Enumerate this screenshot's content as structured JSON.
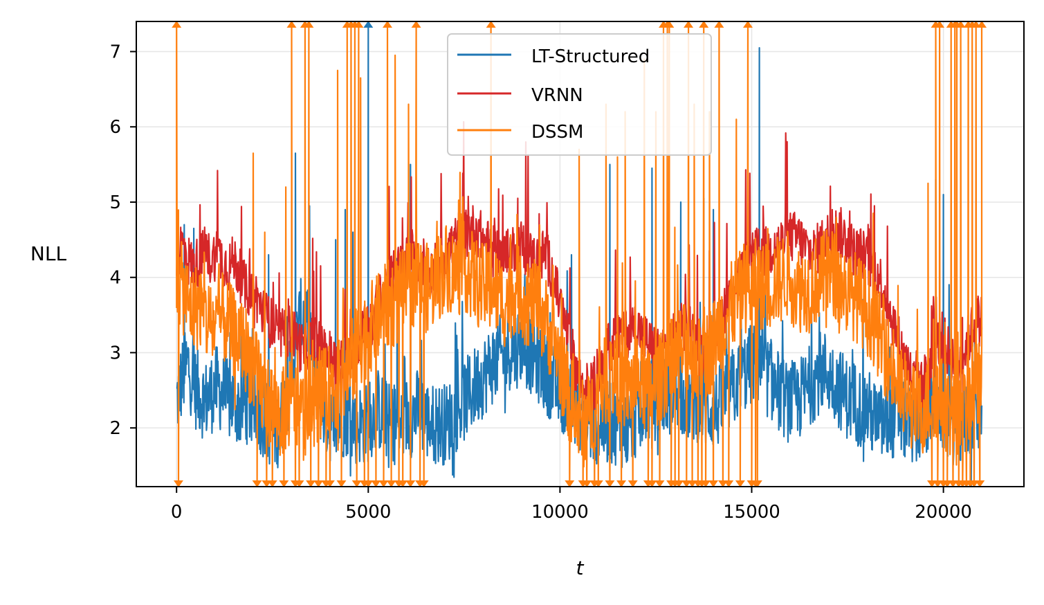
{
  "chart_data": {
    "type": "line",
    "title": "",
    "xlabel": "t",
    "ylabel": "NLL",
    "xlim": [
      -1050,
      22100
    ],
    "ylim": [
      1.22,
      7.4
    ],
    "xticks": [
      0,
      5000,
      10000,
      15000,
      20000
    ],
    "xtick_labels": [
      "0",
      "5000",
      "10000",
      "15000",
      "20000"
    ],
    "yticks": [
      2,
      3,
      4,
      5,
      6,
      7
    ],
    "ytick_labels": [
      "2",
      "3",
      "4",
      "5",
      "6",
      "7"
    ],
    "grid": true,
    "legend_position": "top-center",
    "x_start": 0,
    "x_end": 21000,
    "sample_step": 150,
    "series": [
      {
        "name": "LT-Structured",
        "color": "#1f77b4",
        "baseline": [
          2.3,
          2.6,
          2.8,
          2.5,
          2.4,
          2.3,
          2.4,
          2.5,
          2.4,
          2.3,
          2.3,
          2.2,
          2.3,
          2.2,
          2.2,
          2.1,
          2.0,
          1.9,
          2.0,
          2.3,
          2.7,
          3.2,
          3.5,
          3.3,
          2.8,
          2.3,
          2.1,
          2.0,
          2.0,
          2.1,
          2.1,
          2.0,
          2.0,
          2.0,
          2.1,
          2.2,
          2.1,
          2.0,
          2.0,
          2.0,
          2.1,
          2.1,
          2.2,
          2.1,
          2.0,
          2.0,
          2.0,
          2.0,
          2.1,
          2.2,
          2.3,
          2.4,
          2.5,
          2.6,
          2.7,
          2.8,
          2.9,
          2.9,
          3.0,
          3.0,
          3.1,
          3.0,
          2.9,
          2.8,
          2.7,
          2.6,
          2.5,
          2.4,
          2.4,
          2.3,
          2.2,
          2.1,
          2.0,
          2.0,
          2.0,
          2.0,
          2.0,
          2.0,
          1.9,
          2.0,
          2.1,
          2.2,
          2.3,
          2.3,
          2.4,
          2.4,
          2.4,
          2.5,
          2.4,
          2.3,
          2.3,
          2.3,
          2.2,
          2.2,
          2.2,
          2.3,
          2.4,
          2.5,
          2.6,
          2.7,
          2.8,
          2.8,
          2.7,
          2.6,
          2.5,
          2.4,
          2.3,
          2.3,
          2.3,
          2.4,
          2.5,
          2.6,
          2.7,
          2.7,
          2.6,
          2.5,
          2.4,
          2.3,
          2.3,
          2.2,
          2.2,
          2.1,
          2.0,
          2.0,
          2.0,
          2.1,
          2.1,
          2.0,
          2.0,
          2.0,
          2.1,
          2.2,
          2.3,
          2.2,
          2.1,
          2.0,
          2.0,
          2.0,
          2.1,
          2.1,
          2.2
        ],
        "spikes": [
          {
            "x": 200,
            "y": 4.7
          },
          {
            "x": 450,
            "y": 4.65
          },
          {
            "x": 2400,
            "y": 4.3
          },
          {
            "x": 3100,
            "y": 5.65
          },
          {
            "x": 4150,
            "y": 4.5
          },
          {
            "x": 4400,
            "y": 4.9
          },
          {
            "x": 4600,
            "y": 4.6
          },
          {
            "x": 5000,
            "y": 7.4
          },
          {
            "x": 5750,
            "y": 4.25
          },
          {
            "x": 6100,
            "y": 5.5
          },
          {
            "x": 10300,
            "y": 4.3
          },
          {
            "x": 11300,
            "y": 5.5
          },
          {
            "x": 12400,
            "y": 5.45
          },
          {
            "x": 13150,
            "y": 5.0
          },
          {
            "x": 13750,
            "y": 5.05
          },
          {
            "x": 14000,
            "y": 4.9
          },
          {
            "x": 15200,
            "y": 7.05
          },
          {
            "x": 19800,
            "y": 5.3
          },
          {
            "x": 20000,
            "y": 5.1
          }
        ]
      },
      {
        "name": "VRNN",
        "color": "#d62728",
        "baseline": [
          4.3,
          4.4,
          4.2,
          4.1,
          4.2,
          4.3,
          4.2,
          4.3,
          4.2,
          4.1,
          4.2,
          4.0,
          3.8,
          3.8,
          3.7,
          3.5,
          3.4,
          3.3,
          3.2,
          3.2,
          3.3,
          3.1,
          3.0,
          3.1,
          3.2,
          3.0,
          3.0,
          2.9,
          2.8,
          2.9,
          3.0,
          3.1,
          3.2,
          3.3,
          3.4,
          3.6,
          3.8,
          3.9,
          4.0,
          4.1,
          4.2,
          4.2,
          4.1,
          4.0,
          4.0,
          4.1,
          4.2,
          4.3,
          4.4,
          4.5,
          4.5,
          4.6,
          4.6,
          4.5,
          4.4,
          4.3,
          4.3,
          4.2,
          4.3,
          4.4,
          4.4,
          4.3,
          4.2,
          4.2,
          4.3,
          4.1,
          3.8,
          3.5,
          3.2,
          2.9,
          2.6,
          2.5,
          2.5,
          2.6,
          2.8,
          3.0,
          3.1,
          3.2,
          3.2,
          3.3,
          3.3,
          3.2,
          3.1,
          3.0,
          3.0,
          3.0,
          3.1,
          3.2,
          3.3,
          3.3,
          3.2,
          3.0,
          3.0,
          3.1,
          3.3,
          3.5,
          3.7,
          3.9,
          4.0,
          4.1,
          4.2,
          4.3,
          4.3,
          4.3,
          4.4,
          4.4,
          4.5,
          4.5,
          4.5,
          4.4,
          4.3,
          4.3,
          4.4,
          4.5,
          4.5,
          4.6,
          4.5,
          4.4,
          4.3,
          4.3,
          4.2,
          4.1,
          4.0,
          3.8,
          3.5,
          3.3,
          3.0,
          2.8,
          2.6,
          2.5,
          2.6,
          2.8,
          3.0,
          3.2,
          3.0,
          2.9,
          2.8,
          3.0,
          3.2,
          3.4
        ],
        "spikes": [
          {
            "x": 8200,
            "y": 5.0
          },
          {
            "x": 8900,
            "y": 5.05
          },
          {
            "x": 17100,
            "y": 4.9
          },
          {
            "x": 18200,
            "y": 4.95
          }
        ]
      },
      {
        "name": "DSSM",
        "color": "#ff7f0e",
        "baseline": [
          3.9,
          3.8,
          3.6,
          3.5,
          3.6,
          3.4,
          3.3,
          3.3,
          3.4,
          3.3,
          3.2,
          3.1,
          3.0,
          2.8,
          2.6,
          2.4,
          2.3,
          2.2,
          2.1,
          2.2,
          2.3,
          2.2,
          2.1,
          2.2,
          2.3,
          2.4,
          2.4,
          2.5,
          2.5,
          2.6,
          2.7,
          2.9,
          3.1,
          3.2,
          3.3,
          3.4,
          3.5,
          3.6,
          3.6,
          3.7,
          3.8,
          3.9,
          3.9,
          3.8,
          3.8,
          3.9,
          4.0,
          4.1,
          4.0,
          4.0,
          4.1,
          4.0,
          3.9,
          3.8,
          3.8,
          3.8,
          3.7,
          3.6,
          3.7,
          3.8,
          3.7,
          3.6,
          3.6,
          3.5,
          3.4,
          3.2,
          3.0,
          2.7,
          2.4,
          2.2,
          2.0,
          2.0,
          2.1,
          2.3,
          2.5,
          2.6,
          2.6,
          2.6,
          2.5,
          2.5,
          2.6,
          2.5,
          2.4,
          2.5,
          2.6,
          2.7,
          2.8,
          2.9,
          3.0,
          3.0,
          2.9,
          2.8,
          2.9,
          3.0,
          3.2,
          3.4,
          3.5,
          3.6,
          3.7,
          3.8,
          3.8,
          3.9,
          3.8,
          3.8,
          3.9,
          3.9,
          4.0,
          3.9,
          3.8,
          3.8,
          3.8,
          3.9,
          3.9,
          4.0,
          4.0,
          3.9,
          3.8,
          3.7,
          3.7,
          3.6,
          3.5,
          3.4,
          3.2,
          3.0,
          2.8,
          2.6,
          2.4,
          2.3,
          2.2,
          2.1,
          2.2,
          2.3,
          2.4,
          2.3,
          2.2,
          2.1,
          2.0,
          2.2,
          2.4,
          2.5
        ],
        "spikes": [
          {
            "x": 0,
            "y": 7.4
          },
          {
            "x": 50,
            "y": 1.22
          },
          {
            "x": 2000,
            "y": 5.65
          },
          {
            "x": 2100,
            "y": 1.22
          },
          {
            "x": 2300,
            "y": 4.6
          },
          {
            "x": 2350,
            "y": 1.22
          },
          {
            "x": 2500,
            "y": 1.22
          },
          {
            "x": 2800,
            "y": 1.22
          },
          {
            "x": 2850,
            "y": 5.2
          },
          {
            "x": 3000,
            "y": 7.4
          },
          {
            "x": 3100,
            "y": 1.22
          },
          {
            "x": 3200,
            "y": 1.22
          },
          {
            "x": 3350,
            "y": 7.4
          },
          {
            "x": 3450,
            "y": 7.4
          },
          {
            "x": 3500,
            "y": 1.22
          },
          {
            "x": 3700,
            "y": 1.22
          },
          {
            "x": 3900,
            "y": 1.22
          },
          {
            "x": 4000,
            "y": 1.22
          },
          {
            "x": 4200,
            "y": 6.75
          },
          {
            "x": 4300,
            "y": 1.22
          },
          {
            "x": 4450,
            "y": 7.4
          },
          {
            "x": 4550,
            "y": 7.4
          },
          {
            "x": 4650,
            "y": 7.4
          },
          {
            "x": 4700,
            "y": 1.22
          },
          {
            "x": 4750,
            "y": 7.4
          },
          {
            "x": 4800,
            "y": 6.65
          },
          {
            "x": 4900,
            "y": 1.22
          },
          {
            "x": 5000,
            "y": 1.22
          },
          {
            "x": 5200,
            "y": 1.22
          },
          {
            "x": 5400,
            "y": 1.22
          },
          {
            "x": 5500,
            "y": 7.4
          },
          {
            "x": 5600,
            "y": 1.22
          },
          {
            "x": 5700,
            "y": 6.95
          },
          {
            "x": 5800,
            "y": 1.22
          },
          {
            "x": 5900,
            "y": 1.22
          },
          {
            "x": 6050,
            "y": 6.3
          },
          {
            "x": 6100,
            "y": 1.22
          },
          {
            "x": 6250,
            "y": 7.4
          },
          {
            "x": 6350,
            "y": 1.22
          },
          {
            "x": 6450,
            "y": 1.22
          },
          {
            "x": 8200,
            "y": 7.4
          },
          {
            "x": 10250,
            "y": 1.22
          },
          {
            "x": 10500,
            "y": 5.7
          },
          {
            "x": 10600,
            "y": 1.22
          },
          {
            "x": 10700,
            "y": 1.22
          },
          {
            "x": 10900,
            "y": 1.22
          },
          {
            "x": 11000,
            "y": 1.22
          },
          {
            "x": 11200,
            "y": 6.3
          },
          {
            "x": 11300,
            "y": 1.22
          },
          {
            "x": 11500,
            "y": 5.6
          },
          {
            "x": 11600,
            "y": 1.22
          },
          {
            "x": 11700,
            "y": 6.2
          },
          {
            "x": 11900,
            "y": 1.22
          },
          {
            "x": 12200,
            "y": 6.9
          },
          {
            "x": 12300,
            "y": 1.22
          },
          {
            "x": 12400,
            "y": 1.22
          },
          {
            "x": 12500,
            "y": 6.2
          },
          {
            "x": 12600,
            "y": 1.22
          },
          {
            "x": 12700,
            "y": 7.4
          },
          {
            "x": 12800,
            "y": 7.4
          },
          {
            "x": 12850,
            "y": 7.4
          },
          {
            "x": 12900,
            "y": 1.22
          },
          {
            "x": 13000,
            "y": 1.22
          },
          {
            "x": 13100,
            "y": 1.22
          },
          {
            "x": 13300,
            "y": 1.22
          },
          {
            "x": 13350,
            "y": 7.4
          },
          {
            "x": 13450,
            "y": 1.22
          },
          {
            "x": 13500,
            "y": 6.3
          },
          {
            "x": 13600,
            "y": 1.22
          },
          {
            "x": 13700,
            "y": 1.22
          },
          {
            "x": 13750,
            "y": 7.4
          },
          {
            "x": 13800,
            "y": 1.22
          },
          {
            "x": 13900,
            "y": 6.2
          },
          {
            "x": 14000,
            "y": 1.22
          },
          {
            "x": 14150,
            "y": 7.4
          },
          {
            "x": 14250,
            "y": 1.22
          },
          {
            "x": 14400,
            "y": 1.22
          },
          {
            "x": 14600,
            "y": 6.1
          },
          {
            "x": 14700,
            "y": 1.22
          },
          {
            "x": 14900,
            "y": 7.4
          },
          {
            "x": 15000,
            "y": 1.22
          },
          {
            "x": 15100,
            "y": 1.22
          },
          {
            "x": 15150,
            "y": 1.22
          },
          {
            "x": 19600,
            "y": 5.25
          },
          {
            "x": 19700,
            "y": 1.22
          },
          {
            "x": 19800,
            "y": 7.4
          },
          {
            "x": 19850,
            "y": 1.22
          },
          {
            "x": 19900,
            "y": 7.4
          },
          {
            "x": 20000,
            "y": 1.22
          },
          {
            "x": 20100,
            "y": 1.22
          },
          {
            "x": 20200,
            "y": 7.4
          },
          {
            "x": 20250,
            "y": 1.22
          },
          {
            "x": 20300,
            "y": 7.4
          },
          {
            "x": 20350,
            "y": 7.4
          },
          {
            "x": 20400,
            "y": 1.22
          },
          {
            "x": 20450,
            "y": 7.4
          },
          {
            "x": 20500,
            "y": 1.22
          },
          {
            "x": 20600,
            "y": 1.22
          },
          {
            "x": 20650,
            "y": 7.4
          },
          {
            "x": 20700,
            "y": 1.22
          },
          {
            "x": 20750,
            "y": 7.4
          },
          {
            "x": 20800,
            "y": 1.22
          },
          {
            "x": 20850,
            "y": 7.4
          },
          {
            "x": 20950,
            "y": 1.22
          },
          {
            "x": 21000,
            "y": 7.4
          }
        ]
      }
    ]
  }
}
